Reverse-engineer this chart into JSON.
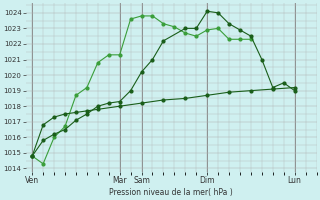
{
  "bg_color": "#cff0f0",
  "grid_color": "#b0b0b0",
  "line_color_dark": "#1a5e1a",
  "line_color_light": "#3a9e3a",
  "ylabel": "Pression niveau de la mer( hPa )",
  "ylim": [
    1013.8,
    1024.6
  ],
  "yticks": [
    1014,
    1015,
    1016,
    1017,
    1018,
    1019,
    1020,
    1021,
    1022,
    1023,
    1024
  ],
  "xtick_labels": [
    "Ven",
    "Mar",
    "Sam",
    "Dim",
    "Lun"
  ],
  "xtick_positions": [
    0,
    4,
    5,
    8,
    12
  ],
  "vline_positions": [
    0,
    4,
    5,
    8,
    12
  ],
  "xlim": [
    -0.3,
    13
  ],
  "series_light_x": [
    0,
    0.5,
    1,
    1.5,
    2,
    2.5,
    3,
    3.5,
    4,
    4.5,
    5,
    5.5,
    6,
    6.5,
    7,
    7.5,
    8,
    8.5,
    9,
    9.5,
    10
  ],
  "series_light_y": [
    1014.8,
    1014.3,
    1016.0,
    1016.7,
    1018.7,
    1019.2,
    1020.8,
    1021.3,
    1021.3,
    1023.6,
    1023.8,
    1023.8,
    1023.3,
    1023.1,
    1022.7,
    1022.5,
    1022.9,
    1023.0,
    1022.3,
    1022.3,
    1022.3
  ],
  "series_dark_x": [
    0,
    0.5,
    1,
    1.5,
    2,
    2.5,
    3,
    3.5,
    4,
    4.5,
    5,
    5.5,
    6,
    7,
    7.5,
    8,
    8.5,
    9,
    9.5,
    10,
    10.5,
    11,
    11.5,
    12
  ],
  "series_dark_y": [
    1014.8,
    1015.8,
    1016.2,
    1016.5,
    1017.1,
    1017.5,
    1018.0,
    1018.2,
    1018.3,
    1019.0,
    1020.2,
    1021.0,
    1022.2,
    1023.0,
    1023.0,
    1024.1,
    1024.0,
    1023.3,
    1022.9,
    1022.5,
    1021.0,
    1019.2,
    1019.5,
    1019.0
  ],
  "series_flat_x": [
    0,
    0.5,
    1,
    1.5,
    2,
    2.5,
    3,
    4,
    5,
    6,
    7,
    8,
    9,
    10,
    11,
    12
  ],
  "series_flat_y": [
    1014.8,
    1016.8,
    1017.3,
    1017.5,
    1017.6,
    1017.7,
    1017.8,
    1018.0,
    1018.2,
    1018.4,
    1018.5,
    1018.7,
    1018.9,
    1019.0,
    1019.1,
    1019.2
  ]
}
